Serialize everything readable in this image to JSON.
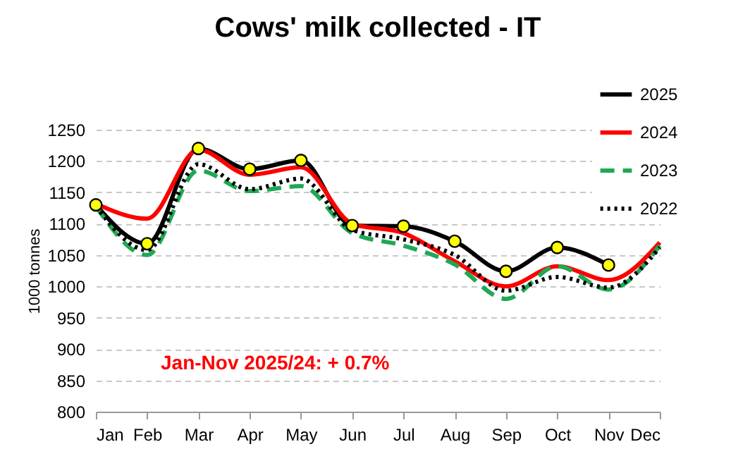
{
  "chart_data": {
    "type": "line",
    "title": "Cows' milk collected - IT",
    "ylabel": "1000 tonnes",
    "categories": [
      "Jan",
      "Feb",
      "Mar",
      "Apr",
      "May",
      "Jun",
      "Jul",
      "Aug",
      "Sep",
      "Oct",
      "Nov",
      "Dec"
    ],
    "series": [
      {
        "name": "2025",
        "color": "#000000",
        "marker": "circle",
        "line_style": "solid",
        "values": [
          1130,
          1068,
          1220,
          1187,
          1201,
          1097,
          1096,
          1072,
          1024,
          1062,
          1034,
          null
        ]
      },
      {
        "name": "2024",
        "color": "#ff0000",
        "line_style": "solid",
        "values": [
          1132,
          1108,
          1218,
          1178,
          1190,
          1100,
          1085,
          1040,
          1000,
          1032,
          1010,
          1070
        ]
      },
      {
        "name": "2023",
        "color": "#1fa855",
        "line_style": "dashed",
        "values": [
          1128,
          1050,
          1185,
          1152,
          1160,
          1085,
          1065,
          1035,
          980,
          1032,
          995,
          1065
        ]
      },
      {
        "name": "2022",
        "color": "#000000",
        "line_style": "dotted",
        "values": [
          1128,
          1058,
          1195,
          1155,
          1172,
          1090,
          1075,
          1050,
          993,
          1015,
          998,
          1062
        ]
      }
    ],
    "ylim": [
      800,
      1250
    ],
    "yticks": [
      800,
      850,
      900,
      950,
      1000,
      1050,
      1100,
      1150,
      1200,
      1250
    ],
    "grid": "y",
    "legend": "top right",
    "annotations": [
      "Jan-Nov 2025/24: + 0.7%"
    ]
  }
}
